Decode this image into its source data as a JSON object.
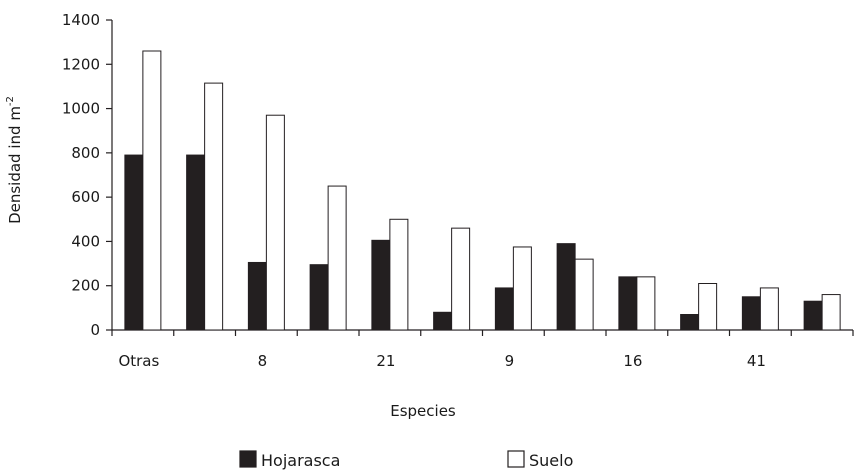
{
  "chart_data": {
    "type": "bar",
    "xlabel": "Especies",
    "ylabel": "Densidad ind m",
    "ylabel_superscript": "-2",
    "ylim": [
      0,
      1400
    ],
    "yticks": [
      0,
      200,
      400,
      600,
      800,
      1000,
      1200,
      1400
    ],
    "categories": [
      "Otras",
      "",
      "8",
      "",
      "21",
      "",
      "9",
      "",
      "16",
      "",
      "41",
      ""
    ],
    "series": [
      {
        "name": "Hojarasca",
        "color": "#231f20",
        "values": [
          790,
          790,
          305,
          295,
          405,
          80,
          190,
          390,
          240,
          70,
          150,
          130
        ]
      },
      {
        "name": "Suelo",
        "color": "#ffffff",
        "values": [
          1260,
          1115,
          970,
          650,
          500,
          460,
          375,
          320,
          240,
          210,
          190,
          160
        ]
      }
    ],
    "grid": false,
    "legend_position": "bottom"
  }
}
